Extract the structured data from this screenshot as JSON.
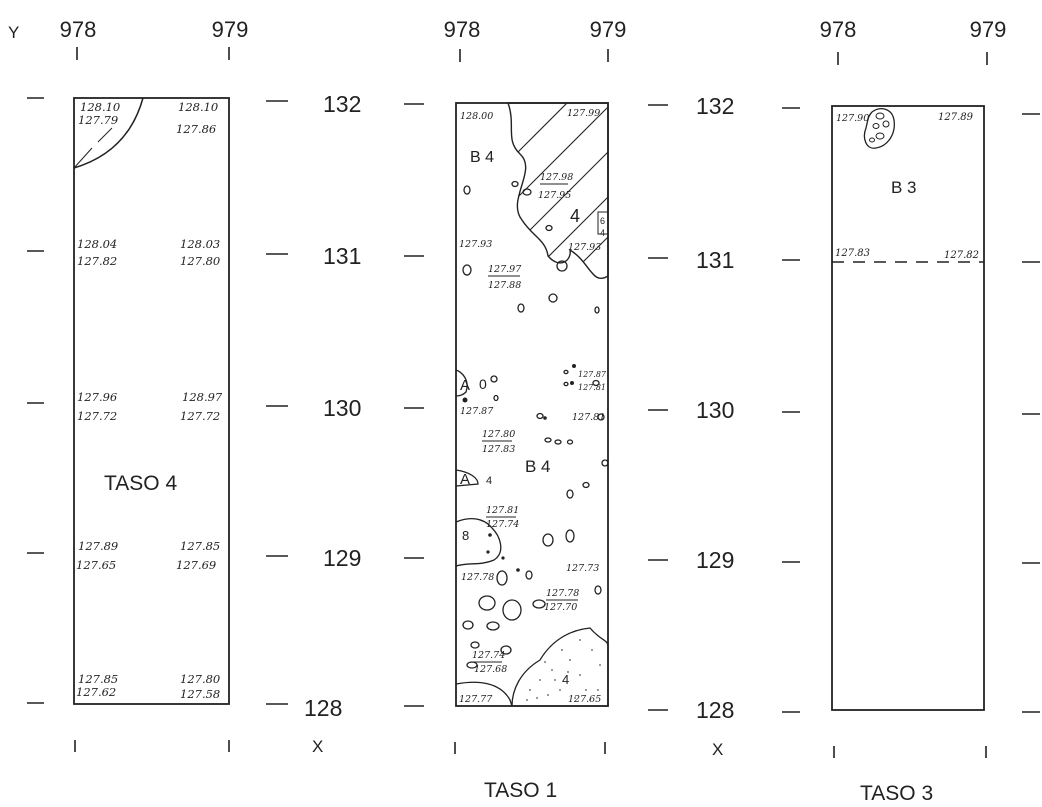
{
  "axis": {
    "y_label": "Y",
    "x_label": "X",
    "x_ticks": [
      "978",
      "979"
    ],
    "y_ticks": [
      "132",
      "131",
      "130",
      "129",
      "128"
    ]
  },
  "plans": [
    {
      "title": "TASO 4",
      "zone_labels": [],
      "elevations": [
        {
          "row": "132",
          "west": {
            "top": "128.10",
            "bottom": "127.79"
          },
          "east": {
            "top": "128.10",
            "bottom": "127.86"
          }
        },
        {
          "row": "131",
          "west": {
            "top": "128.04",
            "bottom": "127.82"
          },
          "east": {
            "top": "128.03",
            "bottom": "127.80"
          }
        },
        {
          "row": "130",
          "west": {
            "top": "127.96",
            "bottom": "127.72"
          },
          "east": {
            "top": "128.97",
            "bottom": "127.72"
          }
        },
        {
          "row": "129",
          "west": {
            "top": "127.89",
            "bottom": "127.65"
          },
          "east": {
            "top": "127.85",
            "bottom": "127.69"
          }
        },
        {
          "row": "128",
          "west": {
            "top": "127.85",
            "bottom": "127.62"
          },
          "east": {
            "top": "127.80",
            "bottom": "127.58"
          }
        }
      ]
    },
    {
      "title": "TASO 1",
      "zone_labels": [
        "B 4",
        "4",
        "6",
        "4",
        "A",
        "0",
        "B 4",
        "A",
        "4",
        "8",
        "4"
      ],
      "elevations": [
        "128.00",
        "127.99",
        "127.98",
        "127.95",
        "127.93",
        "127.93",
        "127.97",
        "127.88",
        "127.87",
        "127.81",
        "127.87",
        "127.81",
        "127.80",
        "127.83",
        "127.81",
        "127.74",
        "127.78",
        "127.73",
        "127.78",
        "127.70",
        "127.74",
        "127.68",
        "127.77",
        "127.65"
      ]
    },
    {
      "title": "TASO 3",
      "zone_labels": [
        "B 3"
      ],
      "elevations": [
        "127.90",
        "127.89",
        "127.83",
        "127.82"
      ]
    }
  ]
}
